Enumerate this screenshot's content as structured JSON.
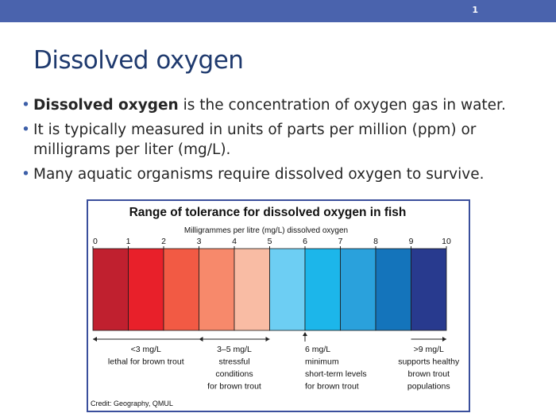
{
  "slide": {
    "page_number": "1",
    "title": "Dissolved oxygen",
    "bullets": [
      {
        "bold": "Dissolved oxygen",
        "text": " is the concentration of oxygen gas in water."
      },
      {
        "bold": "",
        "text": "It is typically measured in units of parts per million (ppm) or milligrams per liter (mg/L)."
      },
      {
        "bold": "",
        "text": "Many aquatic organisms require dissolved oxygen to survive."
      }
    ],
    "colors": {
      "top_bar": "#4a63ad",
      "title": "#1f3a6e",
      "bullet": "#3d5fa8",
      "figure_border": "#3a4f9c"
    }
  },
  "chart_data": {
    "type": "bar",
    "title": "Range of tolerance for dissolved oxygen in fish",
    "xlabel": "Milligrammes per litre (mg/L) dissolved oxygen",
    "ylabel": "",
    "xlim": [
      0,
      10
    ],
    "ticks": [
      "0",
      "1",
      "2",
      "3",
      "4",
      "5",
      "6",
      "7",
      "8",
      "9",
      "10"
    ],
    "segments": [
      {
        "from": 0,
        "to": 1,
        "color": "#c0202f"
      },
      {
        "from": 1,
        "to": 2,
        "color": "#e8202a"
      },
      {
        "from": 2,
        "to": 3,
        "color": "#f25a44"
      },
      {
        "from": 3,
        "to": 4,
        "color": "#f7896b"
      },
      {
        "from": 4,
        "to": 5,
        "color": "#f9bca4"
      },
      {
        "from": 5,
        "to": 6,
        "color": "#6dcef3"
      },
      {
        "from": 6,
        "to": 7,
        "color": "#1cb6ea"
      },
      {
        "from": 7,
        "to": 8,
        "color": "#2aa1dc"
      },
      {
        "from": 8,
        "to": 9,
        "color": "#1474bb"
      },
      {
        "from": 9,
        "to": 10,
        "color": "#283a8e"
      }
    ],
    "annotations": [
      {
        "range": [
          0,
          3
        ],
        "lines": [
          "<3 mg/L",
          "lethal for brown trout"
        ]
      },
      {
        "range": [
          3,
          5
        ],
        "lines": [
          "3–5 mg/L",
          "stressful",
          "conditions",
          "for brown trout"
        ]
      },
      {
        "range": [
          6,
          6
        ],
        "lines": [
          "6 mg/L",
          "minimum",
          "short-term levels",
          "for brown trout"
        ]
      },
      {
        "range": [
          9,
          10
        ],
        "lines": [
          ">9 mg/L",
          "supports healthy",
          "brown trout",
          "populations"
        ]
      }
    ],
    "credit": "Credit: Geography, QMUL"
  }
}
